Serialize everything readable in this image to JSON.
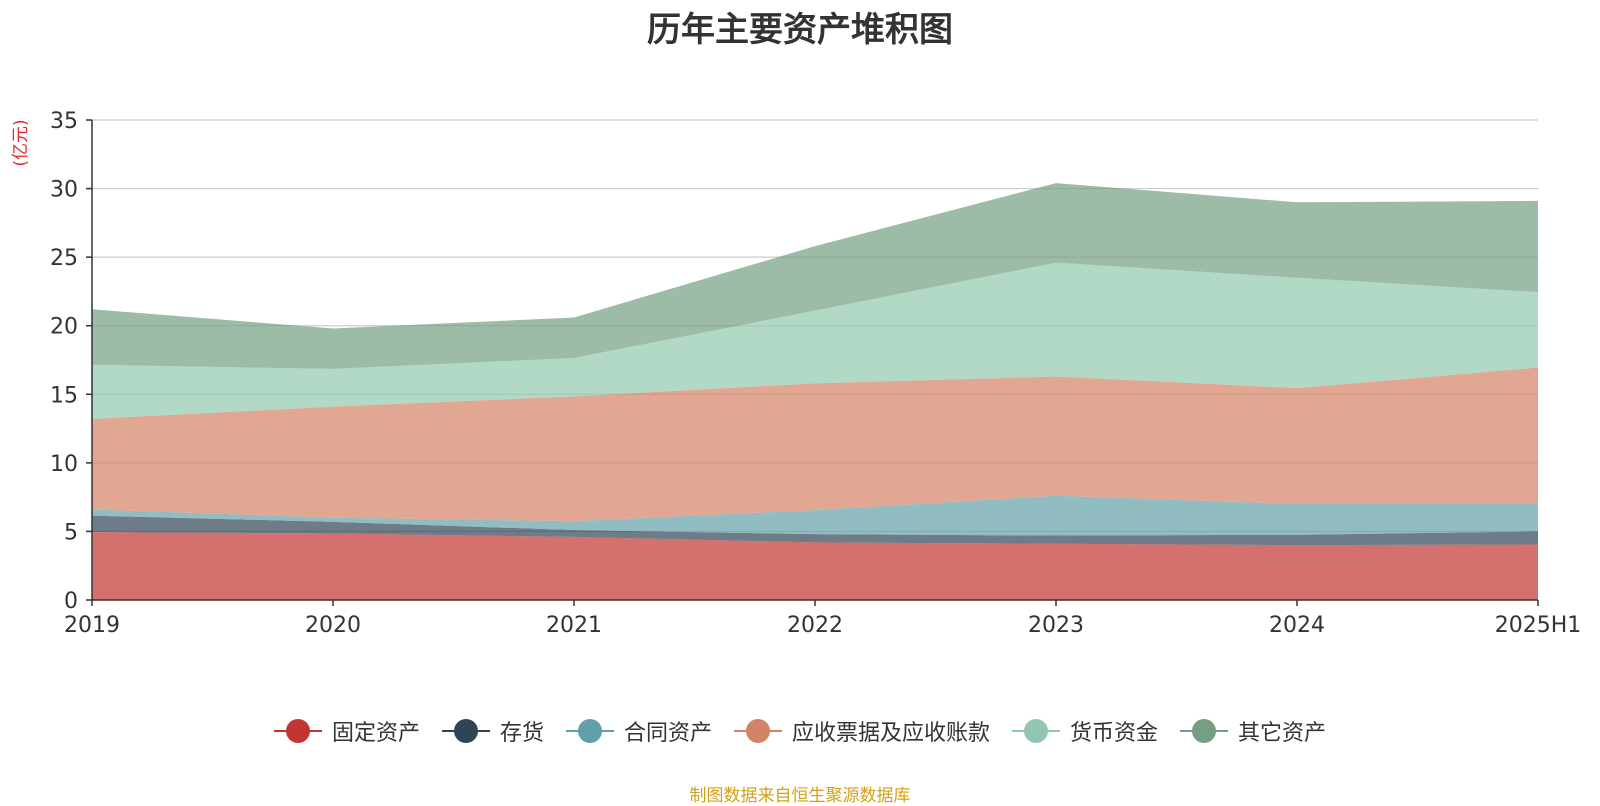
{
  "chart_data": {
    "type": "area",
    "stacked": true,
    "title": "历年主要资产堆积图",
    "ylabel": "(亿元)",
    "categories": [
      "2019",
      "2020",
      "2021",
      "2022",
      "2023",
      "2024",
      "2025H1"
    ],
    "ylim": [
      0,
      35
    ],
    "yticks": [
      0,
      5,
      10,
      15,
      20,
      25,
      30,
      35
    ],
    "grid": true,
    "legend_position": "bottom",
    "series": [
      {
        "name": "固定资产",
        "color": "#c23531",
        "values": [
          4.95,
          4.85,
          4.6,
          4.2,
          4.1,
          4.0,
          4.05
        ]
      },
      {
        "name": "存货",
        "color": "#2f4554",
        "values": [
          1.2,
          0.85,
          0.5,
          0.6,
          0.6,
          0.75,
          0.95
        ]
      },
      {
        "name": "合同资产",
        "color": "#61a0a8",
        "values": [
          0.45,
          0.3,
          0.65,
          1.75,
          2.9,
          2.25,
          2.0
        ]
      },
      {
        "name": "应收票据及应收账款",
        "color": "#d48265",
        "values": [
          6.6,
          8.1,
          9.1,
          9.25,
          8.7,
          8.45,
          9.95
        ]
      },
      {
        "name": "货币资金",
        "color": "#91c7ae",
        "values": [
          3.95,
          2.75,
          2.8,
          5.3,
          8.3,
          8.05,
          5.5
        ]
      },
      {
        "name": "其它资产",
        "color": "#749f83",
        "values": [
          4.05,
          2.95,
          2.95,
          4.7,
          5.8,
          5.5,
          6.65
        ]
      }
    ],
    "source": "制图数据来自恒生聚源数据库"
  }
}
